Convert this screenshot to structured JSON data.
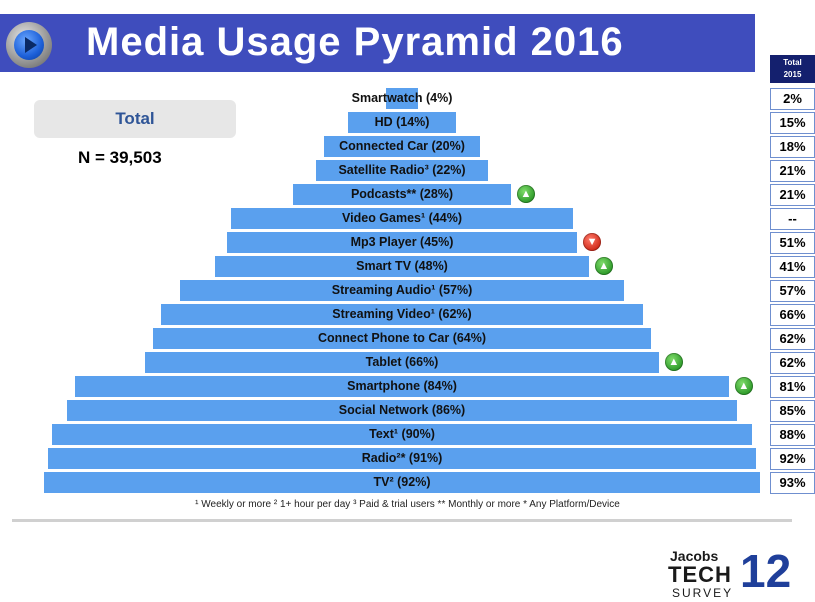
{
  "header": {
    "title": "Media Usage Pyramid 2016"
  },
  "summary": {
    "button_label": "Total",
    "sample": "N = 39,503"
  },
  "comparison": {
    "header": "Total\n2015",
    "values": [
      "2%",
      "15%",
      "18%",
      "21%",
      "21%",
      "--",
      "51%",
      "41%",
      "57%",
      "66%",
      "62%",
      "62%",
      "81%",
      "85%",
      "88%",
      "92%",
      "93%"
    ]
  },
  "chart_data": {
    "type": "bar",
    "orientation": "horizontal-centered-pyramid",
    "categories": [
      "Smartwatch (4%)",
      "HD (14%)",
      "Connected Car (20%)",
      "Satellite Radio³ (22%)",
      "Podcasts** (28%)",
      "Video Games¹ (44%)",
      "Mp3 Player (45%)",
      "Smart TV (48%)",
      "Streaming Audio¹ (57%)",
      "Streaming Video¹ (62%)",
      "Connect Phone to Car (64%)",
      "Tablet (66%)",
      "Smartphone (84%)",
      "Social Network (86%)",
      "Text¹ (90%)",
      "Radio²* (91%)",
      "TV² (92%)"
    ],
    "values": [
      4,
      14,
      20,
      22,
      28,
      44,
      45,
      48,
      57,
      62,
      64,
      66,
      84,
      86,
      90,
      91,
      92
    ],
    "trend": [
      "",
      "",
      "",
      "",
      "up",
      "",
      "down",
      "up",
      "",
      "",
      "",
      "up",
      "up",
      "",
      "",
      "",
      ""
    ],
    "xlim": [
      0,
      92
    ],
    "colors": {
      "bar": "#5aa0ee",
      "up": "#2e9a2a",
      "down": "#d02a1a",
      "header": "#3f4dbd",
      "table_header": "#14206e"
    }
  },
  "footnote": "¹ Weekly or more  ² 1+ hour per day  ³ Paid & trial users  ** Monthly or more * Any Platform/Device",
  "brand": {
    "line1": "Jacobs",
    "line2": "TECH",
    "line3": "SURVEY",
    "number": "12"
  }
}
